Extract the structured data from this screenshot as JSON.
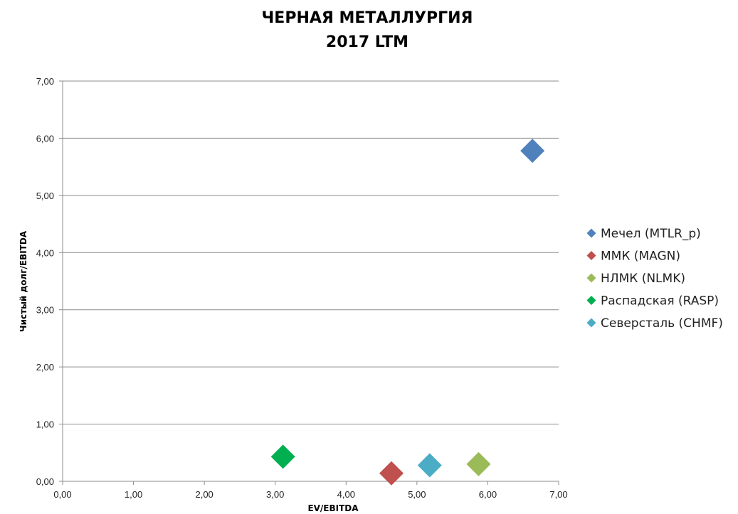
{
  "chart_data": {
    "type": "scatter",
    "title_lines": [
      "ЧЕРНАЯ МЕТАЛЛУРГИЯ",
      "2017 LTM"
    ],
    "xlabel": "EV/EBITDA",
    "ylabel": "Чистый долг/EBITDA",
    "xlim": [
      0,
      7
    ],
    "ylim": [
      0,
      7
    ],
    "x_ticks": [
      "0,00",
      "1,00",
      "2,00",
      "3,00",
      "4,00",
      "5,00",
      "6,00",
      "7,00"
    ],
    "y_ticks": [
      "0,00",
      "1,00",
      "2,00",
      "3,00",
      "4,00",
      "5,00",
      "6,00",
      "7,00"
    ],
    "grid": "horizontal",
    "legend_position": "right",
    "marker": "diamond",
    "series": [
      {
        "name": "Мечел (MTLR_p)",
        "color": "#4F81BD",
        "x": 6.63,
        "y": 5.78
      },
      {
        "name": "ММК (MAGN)",
        "color": "#C0504D",
        "x": 4.64,
        "y": 0.14
      },
      {
        "name": "НЛМК (NLMK)",
        "color": "#9BBB59",
        "x": 5.87,
        "y": 0.3
      },
      {
        "name": "Распадская (RASP)",
        "color": "#00B050",
        "x": 3.11,
        "y": 0.43
      },
      {
        "name": "Северсталь (CHMF)",
        "color": "#4BACC6",
        "x": 5.18,
        "y": 0.28
      }
    ]
  }
}
